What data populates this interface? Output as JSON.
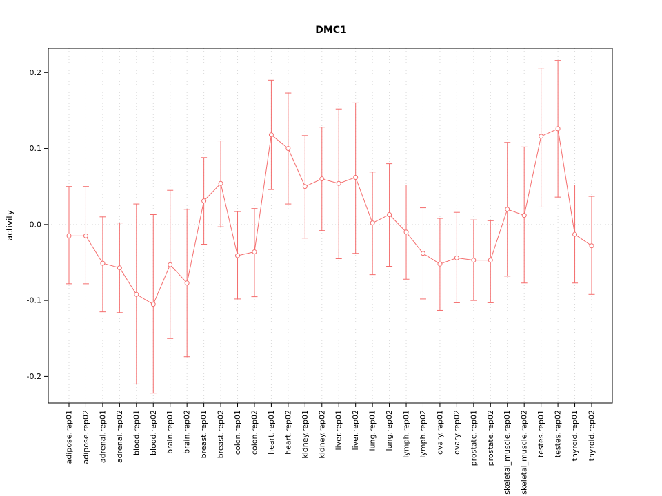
{
  "chart_data": {
    "type": "scatter",
    "title": "DMC1",
    "ylabel": "activity",
    "xlabel": "",
    "ylim": [
      -0.235,
      0.232
    ],
    "y_ticks": [
      -0.2,
      -0.1,
      0.0,
      0.1,
      0.2
    ],
    "grid": true,
    "legend": "none",
    "series_color": "#f46d6d",
    "grid_color": "#d9d9d9",
    "zero_line_color": "#dcdcdc",
    "axis_color": "#000000",
    "categories": [
      "adipose.rep01",
      "adipose.rep02",
      "adrenal.rep01",
      "adrenal.rep02",
      "blood.rep01",
      "blood.rep02",
      "brain.rep01",
      "brain.rep02",
      "breast.rep01",
      "breast.rep02",
      "colon.rep01",
      "colon.rep02",
      "heart.rep01",
      "heart.rep02",
      "kidney.rep01",
      "kidney.rep02",
      "liver.rep01",
      "liver.rep02",
      "lung.rep01",
      "lung.rep02",
      "lymph.rep01",
      "lymph.rep02",
      "ovary.rep01",
      "ovary.rep02",
      "prostate.rep01",
      "prostate.rep02",
      "skeletal_muscle.rep01",
      "skeletal_muscle.rep02",
      "testes.rep01",
      "testes.rep02",
      "thyroid.rep01",
      "thyroid.rep02"
    ],
    "values": [
      -0.015,
      -0.015,
      -0.051,
      -0.057,
      -0.092,
      -0.105,
      -0.053,
      -0.077,
      0.031,
      0.054,
      -0.041,
      -0.036,
      0.118,
      0.1,
      0.05,
      0.06,
      0.054,
      0.062,
      0.002,
      0.013,
      -0.01,
      -0.038,
      -0.052,
      -0.044,
      -0.047,
      -0.047,
      0.02,
      0.012,
      0.116,
      0.126,
      -0.013,
      -0.028
    ],
    "error_low": [
      -0.078,
      -0.078,
      -0.115,
      -0.116,
      -0.21,
      -0.222,
      -0.15,
      -0.174,
      -0.026,
      -0.003,
      -0.098,
      -0.095,
      0.046,
      0.027,
      -0.018,
      -0.008,
      -0.045,
      -0.038,
      -0.066,
      -0.055,
      -0.072,
      -0.098,
      -0.113,
      -0.103,
      -0.1,
      -0.103,
      -0.068,
      -0.077,
      0.023,
      0.036,
      -0.077,
      -0.092
    ],
    "error_high": [
      0.05,
      0.05,
      0.01,
      0.002,
      0.027,
      0.013,
      0.045,
      0.02,
      0.088,
      0.11,
      0.017,
      0.021,
      0.19,
      0.173,
      0.117,
      0.128,
      0.152,
      0.16,
      0.069,
      0.08,
      0.052,
      0.022,
      0.008,
      0.016,
      0.006,
      0.005,
      0.108,
      0.102,
      0.206,
      0.216,
      0.052,
      0.037
    ]
  }
}
